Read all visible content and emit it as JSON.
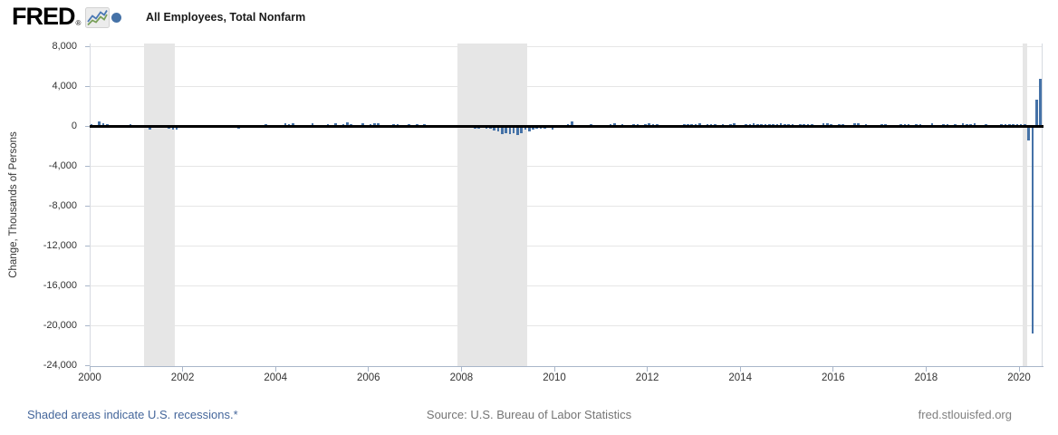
{
  "header": {
    "logo_text": "FRED",
    "logo_registered": "®"
  },
  "chart_data": {
    "type": "bar",
    "title": "All Employees, Total Nonfarm",
    "series_name": "All Employees, Total Nonfarm",
    "ylabel": "Change, Thousands of Persons",
    "xlabel": "",
    "frequency": "monthly",
    "start_date": "2000-01",
    "end_date": "2020-06",
    "ylim": [
      -24000,
      8300
    ],
    "ytick_values": [
      8000,
      4000,
      0,
      -4000,
      -8000,
      -12000,
      -16000,
      -20000,
      -24000
    ],
    "ytick_labels": [
      "8,000",
      "4,000",
      "0",
      "-4,000",
      "-8,000",
      "-12,000",
      "-16,000",
      "-20,000",
      "-24,000"
    ],
    "xtick_years": [
      "2000",
      "2002",
      "2004",
      "2006",
      "2008",
      "2010",
      "2012",
      "2014",
      "2016",
      "2018",
      "2020"
    ],
    "grid": true,
    "legend_position": "top-left",
    "recessions": [
      {
        "start": "2001-03",
        "end": "2001-11"
      },
      {
        "start": "2007-12",
        "end": "2009-06"
      },
      {
        "start": "2020-02",
        "end": "2020-03"
      }
    ],
    "values": [
      249,
      121,
      472,
      286,
      225,
      -46,
      163,
      3,
      122,
      -11,
      231,
      138,
      -16,
      61,
      -30,
      -281,
      -44,
      -128,
      -125,
      -160,
      -244,
      -325,
      -292,
      -178,
      -132,
      -147,
      -24,
      -85,
      -7,
      45,
      -97,
      -16,
      -55,
      126,
      8,
      -156,
      83,
      -158,
      -212,
      -49,
      -6,
      -2,
      25,
      -42,
      103,
      203,
      18,
      124,
      150,
      43,
      338,
      250,
      310,
      81,
      47,
      121,
      160,
      351,
      64,
      132,
      136,
      240,
      142,
      360,
      169,
      246,
      369,
      195,
      63,
      84,
      334,
      158,
      262,
      326,
      304,
      171,
      31,
      124,
      203,
      186,
      157,
      2,
      205,
      169,
      238,
      88,
      188,
      78,
      144,
      71,
      -33,
      -71,
      85,
      82,
      118,
      97,
      15,
      -86,
      -80,
      -214,
      -182,
      -172,
      -210,
      -259,
      -452,
      -474,
      -765,
      -697,
      -798,
      -701,
      -826,
      -684,
      -354,
      -467,
      -327,
      -216,
      -227,
      -198,
      -6,
      -283,
      18,
      -50,
      156,
      251,
      516,
      -122,
      -61,
      -42,
      -57,
      241,
      137,
      71,
      70,
      168,
      212,
      322,
      102,
      217,
      106,
      122,
      221,
      183,
      164,
      196,
      360,
      226,
      243,
      96,
      110,
      88,
      160,
      150,
      161,
      225,
      203,
      214,
      197,
      280,
      141,
      203,
      199,
      201,
      149,
      202,
      164,
      237,
      274,
      84,
      144,
      222,
      203,
      304,
      229,
      267,
      243,
      203,
      271,
      243,
      321,
      256,
      201,
      266,
      119,
      187,
      260,
      245,
      223,
      150,
      149,
      295,
      280,
      271,
      168,
      233,
      186,
      144,
      43,
      297,
      291,
      176,
      249,
      124,
      164,
      155,
      216,
      232,
      50,
      175,
      155,
      239,
      190,
      221,
      14,
      271,
      216,
      175,
      176,
      324,
      155,
      175,
      268,
      208,
      178,
      270,
      119,
      277,
      196,
      227,
      312,
      56,
      153,
      216,
      62,
      178,
      166,
      219,
      193,
      185,
      261,
      184,
      214,
      251,
      -1373,
      -20787,
      2699,
      4800
    ]
  },
  "footer": {
    "recession_note": "Shaded areas indicate U.S. recessions.*",
    "source": "Source: U.S. Bureau of Labor Statistics",
    "site": "fred.stlouisfed.org"
  },
  "colors": {
    "bar": "#4572a7",
    "recession_band": "#e6e6e6",
    "gridline": "#e6e6e6",
    "axis": "#a9b6c9",
    "zero_line": "#000000",
    "link": "#44669b"
  }
}
